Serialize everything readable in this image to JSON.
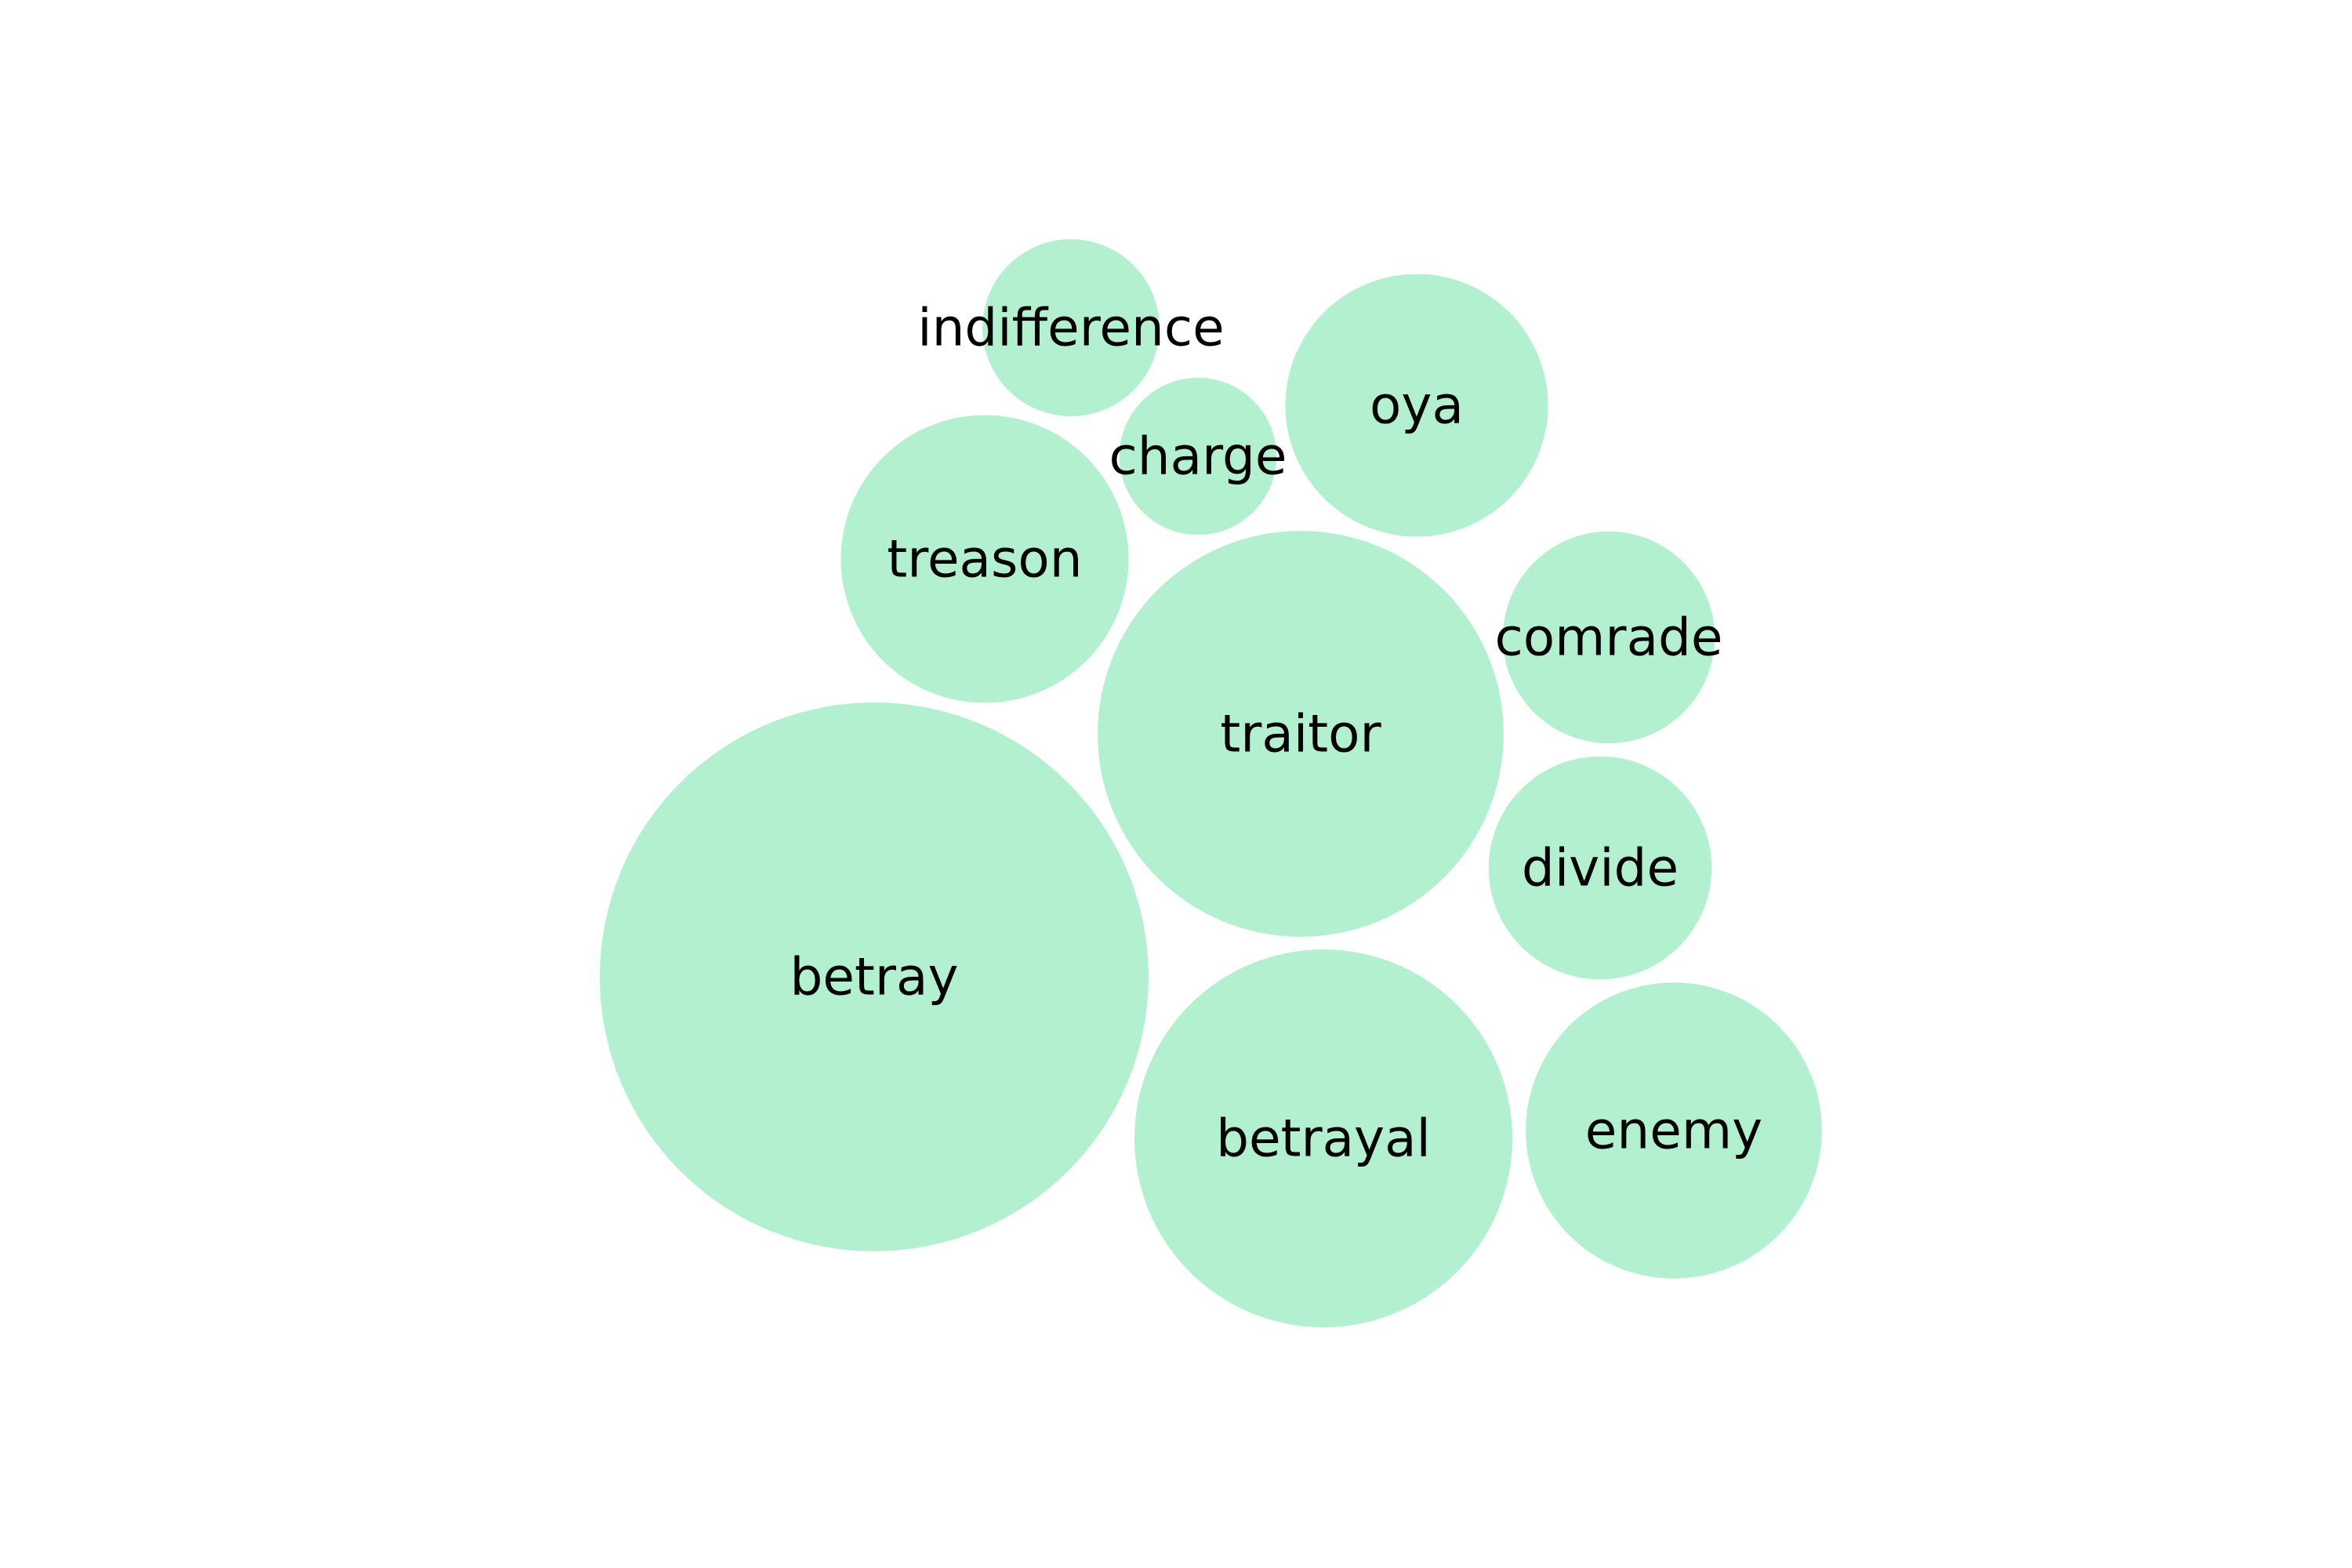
{
  "chart_data": {
    "type": "bubble",
    "title": "",
    "color": "#b2f0cf",
    "label_color": "#000000",
    "bubbles": [
      {
        "label": "betray",
        "value": 100
      },
      {
        "label": "traitor",
        "value": 54.7
      },
      {
        "label": "betrayal",
        "value": 47.4
      },
      {
        "label": "treason",
        "value": 27.5
      },
      {
        "label": "enemy",
        "value": 29.1
      },
      {
        "label": "oya",
        "value": 22.9
      },
      {
        "label": "divide",
        "value": 16.5
      },
      {
        "label": "comrade",
        "value": 14.9
      },
      {
        "label": "indifference",
        "value": 10.4
      },
      {
        "label": "charge",
        "value": 8.2
      }
    ]
  }
}
